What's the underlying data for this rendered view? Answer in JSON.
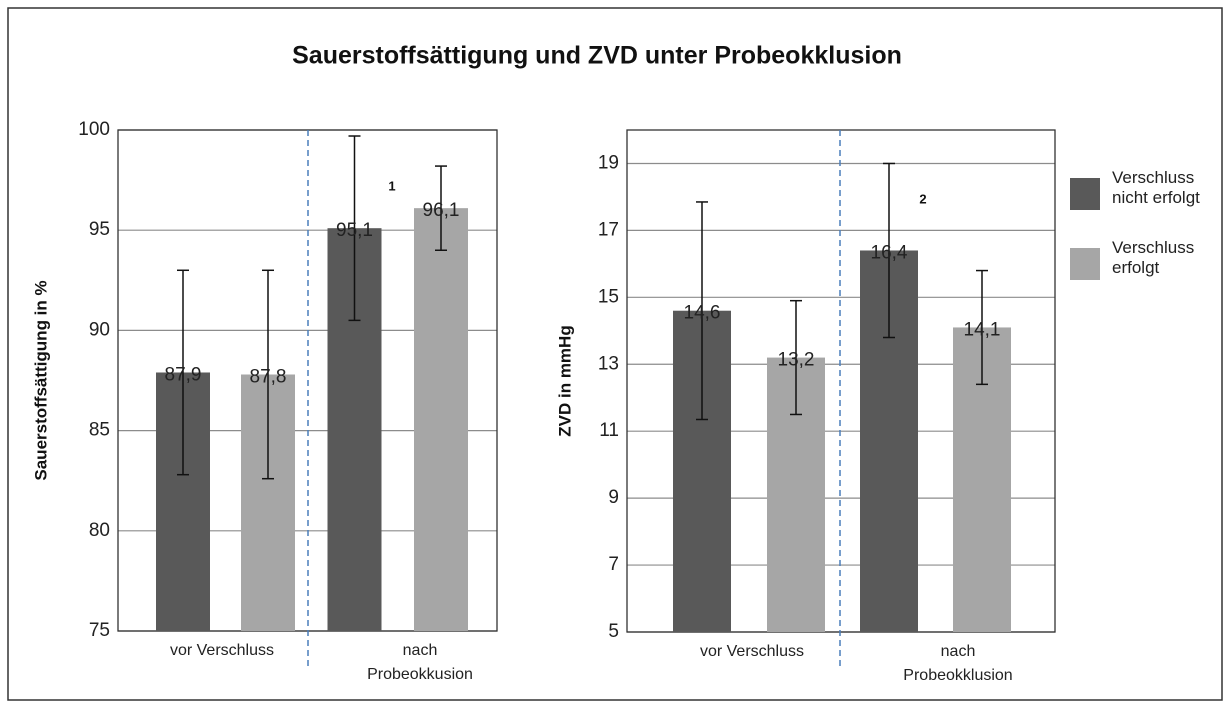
{
  "title": "Sauerstoffsättigung und ZVD unter Probeokklusion",
  "chart_data": [
    {
      "type": "bar",
      "ylabel": "Sauerstoffsättigung in %",
      "categories": [
        "vor Verschluss",
        "nach Probeokkusion"
      ],
      "ylim": [
        75,
        100
      ],
      "yticks": [
        75,
        80,
        85,
        90,
        95,
        100
      ],
      "grid": true,
      "annotation": "1",
      "series": [
        {
          "color": "#595959",
          "values": [
            87.9,
            95.1
          ],
          "value_labels": [
            "87,9",
            "95,1"
          ],
          "errors": [
            5.1,
            4.6
          ]
        },
        {
          "color": "#a6a6a6",
          "values": [
            87.8,
            96.1
          ],
          "value_labels": [
            "87,8",
            "96,1"
          ],
          "errors": [
            5.2,
            2.1
          ]
        }
      ]
    },
    {
      "type": "bar",
      "ylabel": "ZVD in mmHg",
      "categories": [
        "vor Verschluss",
        "nach Probeokklusion"
      ],
      "ylim": [
        5,
        20
      ],
      "yticks": [
        5,
        7,
        9,
        11,
        13,
        15,
        17,
        19
      ],
      "grid": true,
      "annotation": "2",
      "series": [
        {
          "name": "Verschluss nicht erfolgt",
          "color": "#595959",
          "values": [
            14.6,
            16.4
          ],
          "value_labels": [
            "14,6",
            "16,4"
          ],
          "errors": [
            3.25,
            2.6
          ]
        },
        {
          "name": "Verschluss erfolgt",
          "color": "#a6a6a6",
          "values": [
            13.2,
            14.1
          ],
          "value_labels": [
            "13,2",
            "14,1"
          ],
          "errors": [
            1.7,
            1.7
          ]
        }
      ]
    }
  ]
}
